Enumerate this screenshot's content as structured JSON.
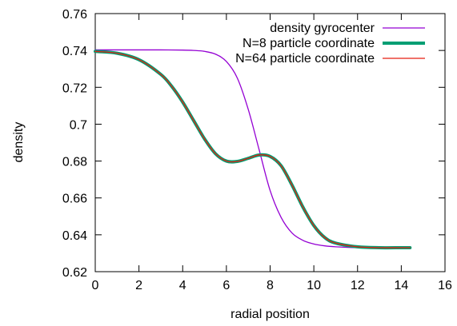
{
  "chart_data": {
    "type": "line",
    "xlabel": "radial position",
    "ylabel": "density",
    "xlim": [
      0,
      16
    ],
    "ylim": [
      0.62,
      0.76
    ],
    "x_ticks": [
      0,
      2,
      4,
      6,
      8,
      10,
      12,
      14,
      16
    ],
    "y_ticks": [
      0.62,
      0.64,
      0.66,
      0.68,
      0.7,
      0.72,
      0.74,
      0.76
    ],
    "x_tick_labels": [
      "0",
      "2",
      "4",
      "6",
      "8",
      "10",
      "12",
      "14",
      "16"
    ],
    "y_tick_labels": [
      "0.62",
      "0.64",
      "0.66",
      "0.68",
      "0.7",
      "0.72",
      "0.74",
      "0.76"
    ],
    "grid": false,
    "legend_position": "top-right",
    "series": [
      {
        "name": "density gyrocenter",
        "color": "#9400d3",
        "x": [
          0,
          1,
          2,
          3,
          4,
          4.5,
          5,
          5.5,
          6,
          6.5,
          7,
          7.5,
          8,
          8.5,
          9,
          9.5,
          10,
          10.5,
          11,
          12,
          13,
          14,
          14.4
        ],
        "y": [
          0.7403,
          0.7403,
          0.7403,
          0.7403,
          0.7402,
          0.74,
          0.7395,
          0.738,
          0.734,
          0.725,
          0.708,
          0.686,
          0.664,
          0.6495,
          0.641,
          0.637,
          0.635,
          0.634,
          0.6335,
          0.633,
          0.633,
          0.633,
          0.633
        ]
      },
      {
        "name": "N=8 particle coordinate",
        "color": "#009e73",
        "x": [
          0,
          1,
          2,
          3,
          3.5,
          4,
          4.5,
          5,
          5.5,
          6,
          6.5,
          7,
          7.5,
          8,
          8.5,
          9,
          9.5,
          10,
          10.5,
          11,
          12,
          13,
          14,
          14.4
        ],
        "y": [
          0.7395,
          0.7385,
          0.735,
          0.727,
          0.7205,
          0.712,
          0.702,
          0.692,
          0.684,
          0.68,
          0.6798,
          0.6815,
          0.6833,
          0.6825,
          0.6775,
          0.667,
          0.655,
          0.645,
          0.6385,
          0.6355,
          0.6335,
          0.633,
          0.633,
          0.633
        ]
      },
      {
        "name": "N=64 particle coordinate",
        "color": "#e51e10",
        "x": [
          0,
          1,
          2,
          3,
          3.5,
          4,
          4.5,
          5,
          5.5,
          6,
          6.5,
          7,
          7.5,
          8,
          8.5,
          9,
          9.5,
          10,
          10.5,
          11,
          12,
          13,
          14,
          14.4
        ],
        "y": [
          0.7395,
          0.7385,
          0.735,
          0.727,
          0.7205,
          0.712,
          0.702,
          0.692,
          0.684,
          0.68,
          0.6798,
          0.6815,
          0.6833,
          0.6825,
          0.6775,
          0.667,
          0.655,
          0.645,
          0.6385,
          0.6355,
          0.6335,
          0.633,
          0.633,
          0.633
        ]
      }
    ]
  }
}
